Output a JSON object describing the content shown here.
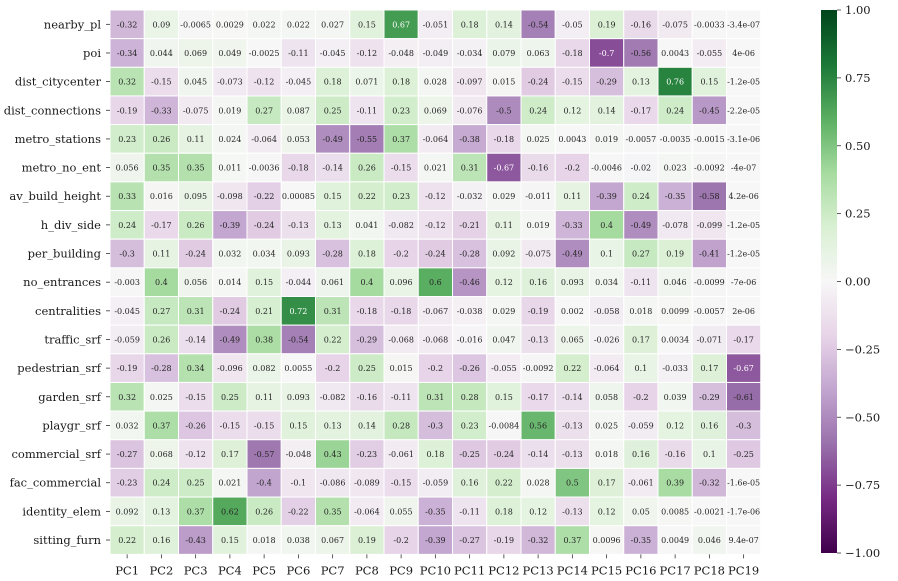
{
  "chart_data": {
    "type": "heatmap",
    "rows": [
      "nearby_pl",
      "poi",
      "dist_citycenter",
      "dist_connections",
      "metro_stations",
      "metro_no_ent",
      "av_build_height",
      "h_div_side",
      "per_building",
      "no_entrances",
      "centralities",
      "traffic_srf",
      "pedestrian_srf",
      "garden_srf",
      "playgr_srf",
      "commercial_srf",
      "fac_commercial",
      "identity_elem",
      "sitting_furn"
    ],
    "columns": [
      "PC1",
      "PC2",
      "PC3",
      "PC4",
      "PC5",
      "PC6",
      "PC7",
      "PC8",
      "PC9",
      "PC10",
      "PC11",
      "PC12",
      "PC13",
      "PC14",
      "PC15",
      "PC16",
      "PC17",
      "PC18",
      "PC19"
    ],
    "values": [
      [
        -0.32,
        0.09,
        -0.0065,
        0.0029,
        0.022,
        0.022,
        0.027,
        0.15,
        0.67,
        -0.051,
        0.18,
        0.14,
        -0.54,
        -0.05,
        0.19,
        -0.16,
        -0.075,
        -0.0033,
        -3.4e-07
      ],
      [
        -0.34,
        0.044,
        0.069,
        0.049,
        -0.0025,
        -0.11,
        -0.045,
        -0.12,
        -0.048,
        -0.049,
        -0.034,
        0.079,
        0.063,
        -0.18,
        -0.7,
        -0.56,
        0.0043,
        -0.055,
        4e-06
      ],
      [
        0.32,
        -0.15,
        0.045,
        -0.073,
        -0.12,
        -0.045,
        0.18,
        0.071,
        0.18,
        0.028,
        -0.097,
        0.015,
        -0.24,
        -0.15,
        -0.29,
        0.13,
        0.76,
        0.15,
        -1.2e-05
      ],
      [
        -0.19,
        -0.33,
        -0.075,
        0.019,
        0.27,
        0.087,
        0.25,
        -0.11,
        0.23,
        0.069,
        -0.076,
        -0.5,
        0.24,
        0.12,
        0.14,
        -0.17,
        0.24,
        -0.45,
        -2.2e-05
      ],
      [
        0.23,
        0.26,
        0.11,
        0.024,
        -0.064,
        0.053,
        -0.49,
        -0.55,
        0.37,
        -0.064,
        -0.38,
        -0.18,
        0.025,
        0.0043,
        0.019,
        -0.0057,
        -0.0035,
        -0.0015,
        -3.1e-06
      ],
      [
        0.056,
        0.35,
        0.35,
        0.011,
        -0.0036,
        -0.18,
        -0.14,
        0.26,
        -0.15,
        0.021,
        0.31,
        -0.67,
        -0.16,
        -0.2,
        -0.0046,
        -0.02,
        0.023,
        -0.0092,
        -4e-07
      ],
      [
        0.33,
        0.016,
        0.095,
        -0.098,
        -0.22,
        0.00085,
        0.15,
        0.22,
        0.23,
        -0.12,
        -0.032,
        0.029,
        -0.011,
        0.11,
        -0.39,
        0.24,
        -0.35,
        -0.58,
        4.2e-06
      ],
      [
        0.24,
        -0.17,
        0.26,
        -0.39,
        -0.24,
        -0.13,
        0.13,
        0.041,
        -0.082,
        -0.12,
        -0.21,
        0.11,
        0.019,
        -0.33,
        0.4,
        -0.49,
        -0.078,
        -0.099,
        -1.2e-05
      ],
      [
        -0.3,
        0.11,
        -0.24,
        0.032,
        0.034,
        0.093,
        -0.28,
        0.18,
        -0.2,
        -0.24,
        -0.28,
        0.092,
        -0.075,
        -0.49,
        0.1,
        0.27,
        0.19,
        -0.41,
        -1.2e-05
      ],
      [
        -0.003,
        0.4,
        0.056,
        0.014,
        0.15,
        -0.044,
        0.061,
        0.4,
        0.096,
        0.6,
        -0.46,
        0.12,
        0.16,
        0.093,
        0.034,
        -0.11,
        0.046,
        -0.0099,
        -7e-06
      ],
      [
        -0.045,
        0.27,
        0.31,
        -0.24,
        0.21,
        0.72,
        0.31,
        -0.18,
        -0.18,
        -0.067,
        -0.038,
        0.029,
        -0.19,
        0.002,
        -0.058,
        0.018,
        0.0099,
        -0.0057,
        2e-06
      ],
      [
        -0.059,
        0.26,
        -0.14,
        -0.49,
        0.38,
        -0.54,
        0.22,
        -0.29,
        -0.068,
        -0.068,
        -0.016,
        0.047,
        -0.13,
        0.065,
        -0.026,
        0.17,
        0.0034,
        -0.071,
        -0.17
      ],
      [
        -0.19,
        -0.28,
        0.34,
        -0.096,
        0.082,
        0.0055,
        -0.2,
        0.25,
        0.015,
        -0.2,
        -0.26,
        -0.055,
        -0.0092,
        0.22,
        -0.064,
        0.1,
        -0.033,
        0.17,
        -0.67
      ],
      [
        0.32,
        0.025,
        -0.15,
        0.25,
        0.11,
        0.093,
        -0.082,
        -0.16,
        -0.11,
        0.31,
        0.28,
        0.15,
        -0.17,
        -0.14,
        0.058,
        -0.2,
        0.039,
        -0.29,
        -0.61
      ],
      [
        0.032,
        0.37,
        -0.26,
        -0.15,
        -0.15,
        0.15,
        0.13,
        0.14,
        0.28,
        -0.3,
        0.23,
        -0.0084,
        0.56,
        -0.13,
        0.025,
        -0.059,
        0.12,
        0.16,
        -0.3
      ],
      [
        -0.27,
        0.068,
        -0.12,
        0.17,
        -0.57,
        -0.048,
        0.43,
        -0.23,
        -0.061,
        0.18,
        -0.25,
        -0.24,
        -0.14,
        -0.13,
        0.018,
        0.16,
        -0.16,
        0.1,
        -0.25
      ],
      [
        -0.23,
        0.24,
        0.25,
        0.021,
        -0.4,
        -0.1,
        -0.086,
        -0.089,
        -0.15,
        -0.059,
        0.16,
        0.22,
        0.028,
        0.5,
        0.17,
        -0.061,
        0.39,
        -0.32,
        -1.6e-05
      ],
      [
        0.092,
        0.13,
        0.37,
        0.62,
        0.26,
        -0.22,
        0.35,
        -0.064,
        0.055,
        -0.35,
        -0.11,
        0.18,
        0.12,
        -0.13,
        0.12,
        0.05,
        0.0085,
        -0.0021,
        -1.7e-06
      ],
      [
        0.22,
        0.16,
        -0.43,
        0.15,
        0.018,
        0.038,
        0.067,
        0.19,
        -0.2,
        -0.39,
        -0.27,
        -0.19,
        -0.32,
        0.37,
        0.0096,
        -0.35,
        0.0049,
        0.046,
        9.4e-07
      ]
    ],
    "labels": [
      [
        "-0.32",
        "0.09",
        "-0.0065",
        "0.0029",
        "0.022",
        "0.022",
        "0.027",
        "0.15",
        "0.67",
        "-0.051",
        "0.18",
        "0.14",
        "-0.54",
        "-0.05",
        "0.19",
        "-0.16",
        "-0.075",
        "-0.0033",
        "-3.4e-07"
      ],
      [
        "-0.34",
        "0.044",
        "0.069",
        "0.049",
        "-0.0025",
        "-0.11",
        "-0.045",
        "-0.12",
        "-0.048",
        "-0.049",
        "-0.034",
        "0.079",
        "0.063",
        "-0.18",
        "-0.7",
        "-0.56",
        "0.0043",
        "-0.055",
        "4e-06"
      ],
      [
        "0.32",
        "-0.15",
        "0.045",
        "-0.073",
        "-0.12",
        "-0.045",
        "0.18",
        "0.071",
        "0.18",
        "0.028",
        "-0.097",
        "0.015",
        "-0.24",
        "-0.15",
        "-0.29",
        "0.13",
        "0.76",
        "0.15",
        "-1.2e-05"
      ],
      [
        "-0.19",
        "-0.33",
        "-0.075",
        "0.019",
        "0.27",
        "0.087",
        "0.25",
        "-0.11",
        "0.23",
        "0.069",
        "-0.076",
        "-0.5",
        "0.24",
        "0.12",
        "0.14",
        "-0.17",
        "0.24",
        "-0.45",
        "-2.2e-05"
      ],
      [
        "0.23",
        "0.26",
        "0.11",
        "0.024",
        "-0.064",
        "0.053",
        "-0.49",
        "-0.55",
        "0.37",
        "-0.064",
        "-0.38",
        "-0.18",
        "0.025",
        "0.0043",
        "0.019",
        "-0.0057",
        "-0.0035",
        "-0.0015",
        "-3.1e-06"
      ],
      [
        "0.056",
        "0.35",
        "0.35",
        "0.011",
        "-0.0036",
        "-0.18",
        "-0.14",
        "0.26",
        "-0.15",
        "0.021",
        "0.31",
        "-0.67",
        "-0.16",
        "-0.2",
        "-0.0046",
        "-0.02",
        "0.023",
        "-0.0092",
        "-4e-07"
      ],
      [
        "0.33",
        "0.016",
        "0.095",
        "-0.098",
        "-0.22",
        "0.00085",
        "0.15",
        "0.22",
        "0.23",
        "-0.12",
        "-0.032",
        "0.029",
        "-0.011",
        "0.11",
        "-0.39",
        "0.24",
        "-0.35",
        "-0.58",
        "4.2e-06"
      ],
      [
        "0.24",
        "-0.17",
        "0.26",
        "-0.39",
        "-0.24",
        "-0.13",
        "0.13",
        "0.041",
        "-0.082",
        "-0.12",
        "-0.21",
        "0.11",
        "0.019",
        "-0.33",
        "0.4",
        "-0.49",
        "-0.078",
        "-0.099",
        "-1.2e-05"
      ],
      [
        "-0.3",
        "0.11",
        "-0.24",
        "0.032",
        "0.034",
        "0.093",
        "-0.28",
        "0.18",
        "-0.2",
        "-0.24",
        "-0.28",
        "0.092",
        "-0.075",
        "-0.49",
        "0.1",
        "0.27",
        "0.19",
        "-0.41",
        "-1.2e-05"
      ],
      [
        "-0.003",
        "0.4",
        "0.056",
        "0.014",
        "0.15",
        "-0.044",
        "0.061",
        "0.4",
        "0.096",
        "0.6",
        "-0.46",
        "0.12",
        "0.16",
        "0.093",
        "0.034",
        "-0.11",
        "0.046",
        "-0.0099",
        "-7e-06"
      ],
      [
        "-0.045",
        "0.27",
        "0.31",
        "-0.24",
        "0.21",
        "0.72",
        "0.31",
        "-0.18",
        "-0.18",
        "-0.067",
        "-0.038",
        "0.029",
        "-0.19",
        "0.002",
        "-0.058",
        "0.018",
        "0.0099",
        "-0.0057",
        "2e-06"
      ],
      [
        "-0.059",
        "0.26",
        "-0.14",
        "-0.49",
        "0.38",
        "-0.54",
        "0.22",
        "-0.29",
        "-0.068",
        "-0.068",
        "-0.016",
        "0.047",
        "-0.13",
        "0.065",
        "-0.026",
        "0.17",
        "0.0034",
        "-0.071",
        "-0.17"
      ],
      [
        "-0.19",
        "-0.28",
        "0.34",
        "-0.096",
        "0.082",
        "0.0055",
        "-0.2",
        "0.25",
        "0.015",
        "-0.2",
        "-0.26",
        "-0.055",
        "-0.0092",
        "0.22",
        "-0.064",
        "0.1",
        "-0.033",
        "0.17",
        "-0.67"
      ],
      [
        "0.32",
        "0.025",
        "-0.15",
        "0.25",
        "0.11",
        "0.093",
        "-0.082",
        "-0.16",
        "-0.11",
        "0.31",
        "0.28",
        "0.15",
        "-0.17",
        "-0.14",
        "0.058",
        "-0.2",
        "0.039",
        "-0.29",
        "-0.61"
      ],
      [
        "0.032",
        "0.37",
        "-0.26",
        "-0.15",
        "-0.15",
        "0.15",
        "0.13",
        "0.14",
        "0.28",
        "-0.3",
        "0.23",
        "-0.0084",
        "0.56",
        "-0.13",
        "0.025",
        "-0.059",
        "0.12",
        "0.16",
        "-0.3"
      ],
      [
        "-0.27",
        "0.068",
        "-0.12",
        "0.17",
        "-0.57",
        "-0.048",
        "0.43",
        "-0.23",
        "-0.061",
        "0.18",
        "-0.25",
        "-0.24",
        "-0.14",
        "-0.13",
        "0.018",
        "0.16",
        "-0.16",
        "0.1",
        "-0.25"
      ],
      [
        "-0.23",
        "0.24",
        "0.25",
        "0.021",
        "-0.4",
        "-0.1",
        "-0.086",
        "-0.089",
        "-0.15",
        "-0.059",
        "0.16",
        "0.22",
        "0.028",
        "0.5",
        "0.17",
        "-0.061",
        "0.39",
        "-0.32",
        "-1.6e-05"
      ],
      [
        "0.092",
        "0.13",
        "0.37",
        "0.62",
        "0.26",
        "-0.22",
        "0.35",
        "-0.064",
        "0.055",
        "-0.35",
        "-0.11",
        "0.18",
        "0.12",
        "-0.13",
        "0.12",
        "0.05",
        "0.0085",
        "-0.0021",
        "-1.7e-06"
      ],
      [
        "0.22",
        "0.16",
        "-0.43",
        "0.15",
        "0.018",
        "0.038",
        "0.067",
        "0.19",
        "-0.2",
        "-0.39",
        "-0.27",
        "-0.19",
        "-0.32",
        "0.37",
        "0.0096",
        "-0.35",
        "0.0049",
        "0.046",
        "9.4e-07"
      ]
    ],
    "vmin": -1.0,
    "vmax": 1.0,
    "colormap": "PRGn",
    "colormap_stops": [
      "#40004b",
      "#762a83",
      "#9970ab",
      "#c2a5cf",
      "#e7d4e8",
      "#f7f7f7",
      "#d9f0d3",
      "#a6dba0",
      "#5aae61",
      "#1b7837",
      "#00441b"
    ],
    "colorbar": {
      "ticks": [
        -1.0,
        -0.75,
        -0.5,
        -0.25,
        0.0,
        0.25,
        0.5,
        0.75,
        1.0
      ],
      "tick_labels": [
        "−1.00",
        "−0.75",
        "−0.50",
        "−0.25",
        "0.00",
        "0.25",
        "0.50",
        "0.75",
        "1.00"
      ]
    },
    "title": "",
    "xlabel": "",
    "ylabel": ""
  }
}
